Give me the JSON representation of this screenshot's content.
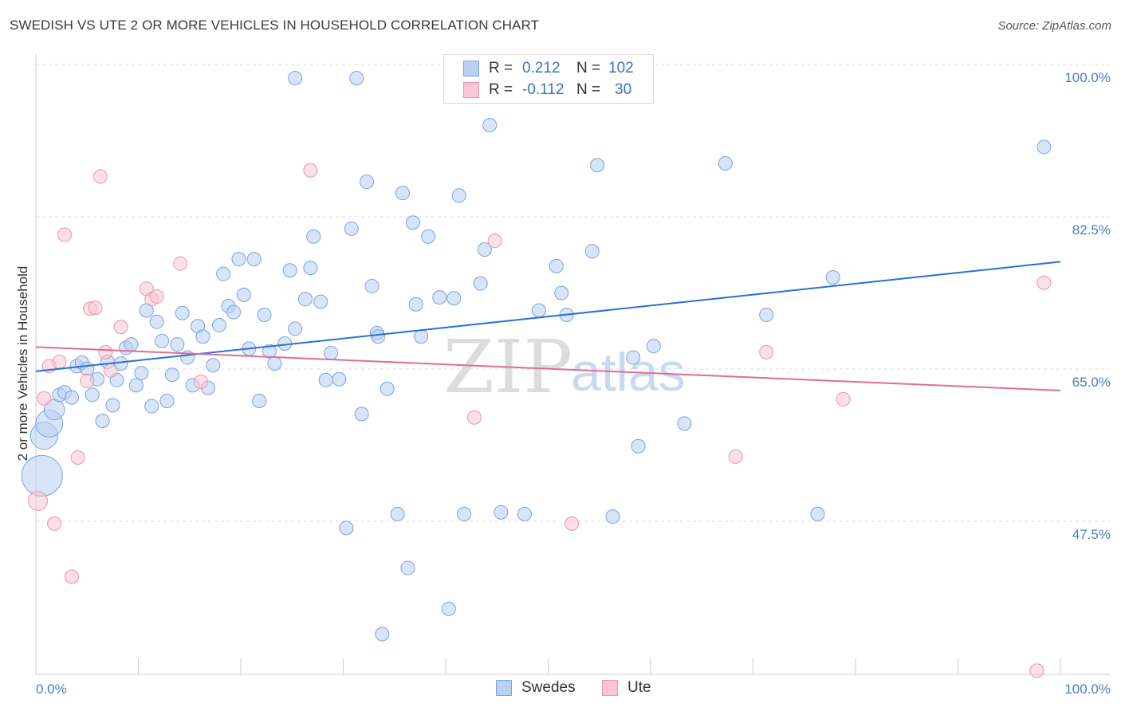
{
  "header": {
    "title": "SWEDISH VS UTE 2 OR MORE VEHICLES IN HOUSEHOLD CORRELATION CHART",
    "source": "Source: ZipAtlas.com"
  },
  "legend": {
    "rows": [
      {
        "r_label": "R =",
        "r_value": "0.212",
        "n_label": "N =",
        "n_value": "102"
      },
      {
        "r_label": "R =",
        "r_value": "-0.112",
        "n_label": "N =",
        "n_value": "30"
      }
    ]
  },
  "bottom_legend": {
    "swedes": "Swedes",
    "ute": "Ute"
  },
  "watermark": {
    "zip": "ZIP",
    "atlas": "atlas"
  },
  "colors": {
    "swedes_fill": "#b8d0f2",
    "swedes_stroke": "#7aa3e0",
    "swedes_line": "#2a6fd1",
    "ute_fill": "#f8c6d4",
    "ute_stroke": "#ec93ae",
    "ute_line": "#e06c96",
    "tick_text": "#4a7cc7",
    "grid": "#dedede"
  },
  "chart_data": {
    "type": "scatter",
    "title": "SWEDISH VS UTE 2 OR MORE VEHICLES IN HOUSEHOLD CORRELATION CHART",
    "xlabel": "",
    "ylabel": "2 or more Vehicles in Household",
    "xlim": [
      0,
      100
    ],
    "ylim": [
      30,
      100
    ],
    "x_tick_labels": [
      "0.0%",
      "100.0%"
    ],
    "y_ticks": [
      47.5,
      65.0,
      82.5,
      100.0
    ],
    "y_tick_labels": [
      "47.5%",
      "65.0%",
      "82.5%",
      "100.0%"
    ],
    "grid": true,
    "legend_position": "top-center",
    "series": [
      {
        "name": "Swedes",
        "r": 0.212,
        "n": 102,
        "trend": {
          "x": [
            0,
            100
          ],
          "y": [
            66.2,
            78.8
          ]
        },
        "points": [
          {
            "x": 0.6,
            "y": 54.2,
            "s": 3
          },
          {
            "x": 0.8,
            "y": 58.8,
            "s": 2
          },
          {
            "x": 1.3,
            "y": 60.2,
            "s": 2
          },
          {
            "x": 1.8,
            "y": 61.8,
            "s": 1.5
          },
          {
            "x": 2.3,
            "y": 63.5,
            "s": 1
          },
          {
            "x": 2.8,
            "y": 63.8,
            "s": 1
          },
          {
            "x": 3.5,
            "y": 63.2,
            "s": 1
          },
          {
            "x": 4.0,
            "y": 66.8,
            "s": 1
          },
          {
            "x": 4.5,
            "y": 67.2,
            "s": 1
          },
          {
            "x": 5.0,
            "y": 66.5,
            "s": 1
          },
          {
            "x": 5.5,
            "y": 63.5,
            "s": 1
          },
          {
            "x": 6.0,
            "y": 65.3,
            "s": 1
          },
          {
            "x": 6.5,
            "y": 60.5,
            "s": 1
          },
          {
            "x": 7.0,
            "y": 67.3,
            "s": 1
          },
          {
            "x": 7.5,
            "y": 62.3,
            "s": 1
          },
          {
            "x": 7.9,
            "y": 65.2,
            "s": 1
          },
          {
            "x": 8.3,
            "y": 67.1,
            "s": 1
          },
          {
            "x": 8.8,
            "y": 68.9,
            "s": 1
          },
          {
            "x": 9.3,
            "y": 69.3,
            "s": 1
          },
          {
            "x": 9.8,
            "y": 64.6,
            "s": 1
          },
          {
            "x": 10.3,
            "y": 66.0,
            "s": 1
          },
          {
            "x": 10.8,
            "y": 73.2,
            "s": 1
          },
          {
            "x": 11.3,
            "y": 62.2,
            "s": 1
          },
          {
            "x": 11.8,
            "y": 71.9,
            "s": 1
          },
          {
            "x": 12.3,
            "y": 69.7,
            "s": 1
          },
          {
            "x": 12.8,
            "y": 62.8,
            "s": 1
          },
          {
            "x": 13.3,
            "y": 65.8,
            "s": 1
          },
          {
            "x": 13.8,
            "y": 69.3,
            "s": 1
          },
          {
            "x": 14.3,
            "y": 72.9,
            "s": 1
          },
          {
            "x": 14.8,
            "y": 67.8,
            "s": 1
          },
          {
            "x": 15.3,
            "y": 64.6,
            "s": 1
          },
          {
            "x": 15.8,
            "y": 71.4,
            "s": 1
          },
          {
            "x": 16.3,
            "y": 70.2,
            "s": 1
          },
          {
            "x": 16.8,
            "y": 64.3,
            "s": 1
          },
          {
            "x": 17.3,
            "y": 66.9,
            "s": 1
          },
          {
            "x": 17.9,
            "y": 71.5,
            "s": 1
          },
          {
            "x": 18.3,
            "y": 77.4,
            "s": 1
          },
          {
            "x": 18.8,
            "y": 73.7,
            "s": 1
          },
          {
            "x": 19.3,
            "y": 73.0,
            "s": 1
          },
          {
            "x": 19.8,
            "y": 79.1,
            "s": 1
          },
          {
            "x": 20.3,
            "y": 75.0,
            "s": 1
          },
          {
            "x": 20.8,
            "y": 68.8,
            "s": 1
          },
          {
            "x": 21.3,
            "y": 79.1,
            "s": 1
          },
          {
            "x": 21.8,
            "y": 62.8,
            "s": 1
          },
          {
            "x": 22.3,
            "y": 72.7,
            "s": 1
          },
          {
            "x": 22.8,
            "y": 68.5,
            "s": 1
          },
          {
            "x": 23.3,
            "y": 67.1,
            "s": 1
          },
          {
            "x": 24.3,
            "y": 69.4,
            "s": 1
          },
          {
            "x": 24.8,
            "y": 77.8,
            "s": 1
          },
          {
            "x": 25.3,
            "y": 71.1,
            "s": 1
          },
          {
            "x": 25.3,
            "y": 99.9,
            "s": 1
          },
          {
            "x": 26.3,
            "y": 74.5,
            "s": 1
          },
          {
            "x": 26.8,
            "y": 78.1,
            "s": 1
          },
          {
            "x": 27.1,
            "y": 81.7,
            "s": 1
          },
          {
            "x": 27.8,
            "y": 74.2,
            "s": 1
          },
          {
            "x": 28.3,
            "y": 65.2,
            "s": 1
          },
          {
            "x": 28.8,
            "y": 68.3,
            "s": 1
          },
          {
            "x": 29.6,
            "y": 65.3,
            "s": 1
          },
          {
            "x": 30.3,
            "y": 48.2,
            "s": 1
          },
          {
            "x": 30.8,
            "y": 82.6,
            "s": 1
          },
          {
            "x": 31.3,
            "y": 99.9,
            "s": 1
          },
          {
            "x": 31.8,
            "y": 61.3,
            "s": 1
          },
          {
            "x": 32.3,
            "y": 88.0,
            "s": 1
          },
          {
            "x": 32.8,
            "y": 76.0,
            "s": 1
          },
          {
            "x": 33.3,
            "y": 70.6,
            "s": 1
          },
          {
            "x": 33.4,
            "y": 70.2,
            "s": 1
          },
          {
            "x": 33.8,
            "y": 36.0,
            "s": 1
          },
          {
            "x": 34.3,
            "y": 64.2,
            "s": 1
          },
          {
            "x": 35.3,
            "y": 49.8,
            "s": 1
          },
          {
            "x": 35.8,
            "y": 86.7,
            "s": 1
          },
          {
            "x": 36.3,
            "y": 43.6,
            "s": 1
          },
          {
            "x": 36.8,
            "y": 83.3,
            "s": 1
          },
          {
            "x": 37.1,
            "y": 73.9,
            "s": 1
          },
          {
            "x": 37.6,
            "y": 70.2,
            "s": 1
          },
          {
            "x": 38.3,
            "y": 81.7,
            "s": 1
          },
          {
            "x": 39.4,
            "y": 74.7,
            "s": 1
          },
          {
            "x": 40.3,
            "y": 38.9,
            "s": 1
          },
          {
            "x": 40.8,
            "y": 74.6,
            "s": 1
          },
          {
            "x": 41.3,
            "y": 86.4,
            "s": 1
          },
          {
            "x": 41.8,
            "y": 49.8,
            "s": 1
          },
          {
            "x": 43.4,
            "y": 76.3,
            "s": 1
          },
          {
            "x": 43.8,
            "y": 80.2,
            "s": 1
          },
          {
            "x": 44.3,
            "y": 94.5,
            "s": 1
          },
          {
            "x": 45.4,
            "y": 50.0,
            "s": 1
          },
          {
            "x": 47.7,
            "y": 49.8,
            "s": 1
          },
          {
            "x": 49.1,
            "y": 73.2,
            "s": 1
          },
          {
            "x": 50.8,
            "y": 78.3,
            "s": 1
          },
          {
            "x": 51.3,
            "y": 75.2,
            "s": 1
          },
          {
            "x": 51.8,
            "y": 72.7,
            "s": 1
          },
          {
            "x": 54.3,
            "y": 80.0,
            "s": 1
          },
          {
            "x": 54.8,
            "y": 89.9,
            "s": 1
          },
          {
            "x": 56.3,
            "y": 49.5,
            "s": 1
          },
          {
            "x": 58.3,
            "y": 67.8,
            "s": 1
          },
          {
            "x": 58.8,
            "y": 57.6,
            "s": 1
          },
          {
            "x": 60.3,
            "y": 69.1,
            "s": 1
          },
          {
            "x": 63.3,
            "y": 60.2,
            "s": 1
          },
          {
            "x": 67.3,
            "y": 90.1,
            "s": 1
          },
          {
            "x": 71.3,
            "y": 72.7,
            "s": 1
          },
          {
            "x": 76.3,
            "y": 49.8,
            "s": 1
          },
          {
            "x": 77.8,
            "y": 77.0,
            "s": 1
          },
          {
            "x": 98.4,
            "y": 92.0,
            "s": 1
          }
        ]
      },
      {
        "name": "Ute",
        "r": -0.112,
        "n": 30,
        "trend": {
          "x": [
            0,
            100
          ],
          "y": [
            69.0,
            64.0
          ]
        },
        "points": [
          {
            "x": 0.2,
            "y": 51.3,
            "s": 1.4
          },
          {
            "x": 0.8,
            "y": 63.1,
            "s": 1
          },
          {
            "x": 1.3,
            "y": 66.8,
            "s": 1
          },
          {
            "x": 1.8,
            "y": 48.7,
            "s": 1
          },
          {
            "x": 2.3,
            "y": 67.3,
            "s": 1
          },
          {
            "x": 2.8,
            "y": 81.9,
            "s": 1
          },
          {
            "x": 3.5,
            "y": 42.6,
            "s": 1
          },
          {
            "x": 4.1,
            "y": 56.3,
            "s": 1
          },
          {
            "x": 5.0,
            "y": 65.1,
            "s": 1
          },
          {
            "x": 5.3,
            "y": 73.4,
            "s": 1
          },
          {
            "x": 5.8,
            "y": 73.5,
            "s": 1
          },
          {
            "x": 6.3,
            "y": 88.6,
            "s": 1
          },
          {
            "x": 6.8,
            "y": 68.4,
            "s": 1
          },
          {
            "x": 7.3,
            "y": 66.3,
            "s": 1
          },
          {
            "x": 8.3,
            "y": 71.3,
            "s": 1
          },
          {
            "x": 10.8,
            "y": 75.7,
            "s": 1
          },
          {
            "x": 11.3,
            "y": 74.5,
            "s": 1
          },
          {
            "x": 11.8,
            "y": 74.8,
            "s": 1
          },
          {
            "x": 14.1,
            "y": 78.6,
            "s": 1
          },
          {
            "x": 16.1,
            "y": 65.0,
            "s": 1
          },
          {
            "x": 26.8,
            "y": 89.3,
            "s": 1
          },
          {
            "x": 42.8,
            "y": 60.9,
            "s": 1
          },
          {
            "x": 44.8,
            "y": 81.2,
            "s": 1
          },
          {
            "x": 52.3,
            "y": 48.7,
            "s": 1
          },
          {
            "x": 68.3,
            "y": 56.4,
            "s": 1
          },
          {
            "x": 71.3,
            "y": 68.4,
            "s": 1
          },
          {
            "x": 78.8,
            "y": 63.0,
            "s": 1
          },
          {
            "x": 97.7,
            "y": 31.8,
            "s": 1
          },
          {
            "x": 98.4,
            "y": 76.4,
            "s": 1
          }
        ]
      }
    ]
  }
}
